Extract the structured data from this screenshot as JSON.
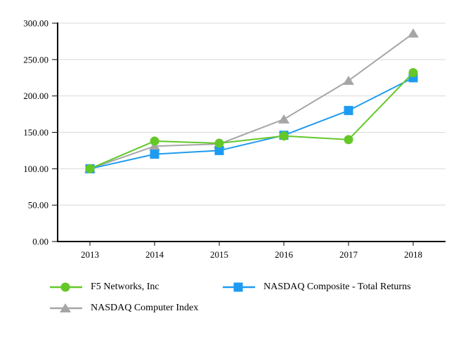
{
  "chart_data": {
    "type": "line",
    "title": "",
    "categories": [
      "2013",
      "2014",
      "2015",
      "2016",
      "2017",
      "2018"
    ],
    "series": [
      {
        "name": "F5 Networks, Inc",
        "marker": "circle",
        "color": "#64c828",
        "values": [
          100,
          138,
          135,
          145,
          140,
          232
        ]
      },
      {
        "name": "NASDAQ Composite - Total Returns",
        "marker": "square",
        "color": "#1e9bf0",
        "values": [
          100,
          120,
          125,
          146,
          180,
          225
        ]
      },
      {
        "name": "NASDAQ Computer Index",
        "marker": "triangle",
        "color": "#a6a6a6",
        "values": [
          100,
          131,
          134,
          168,
          221,
          286
        ]
      }
    ],
    "ylim": [
      0,
      300
    ],
    "ytick_step": 50,
    "ytick_labels": [
      "0.00",
      "50.00",
      "100.00",
      "150.00",
      "200.00",
      "250.00",
      "300.00"
    ],
    "xlabel": "",
    "ylabel": "",
    "grid": true,
    "gridline_color": "#d9d9d9",
    "axis_color": "#000000",
    "legend_position": "bottom"
  }
}
